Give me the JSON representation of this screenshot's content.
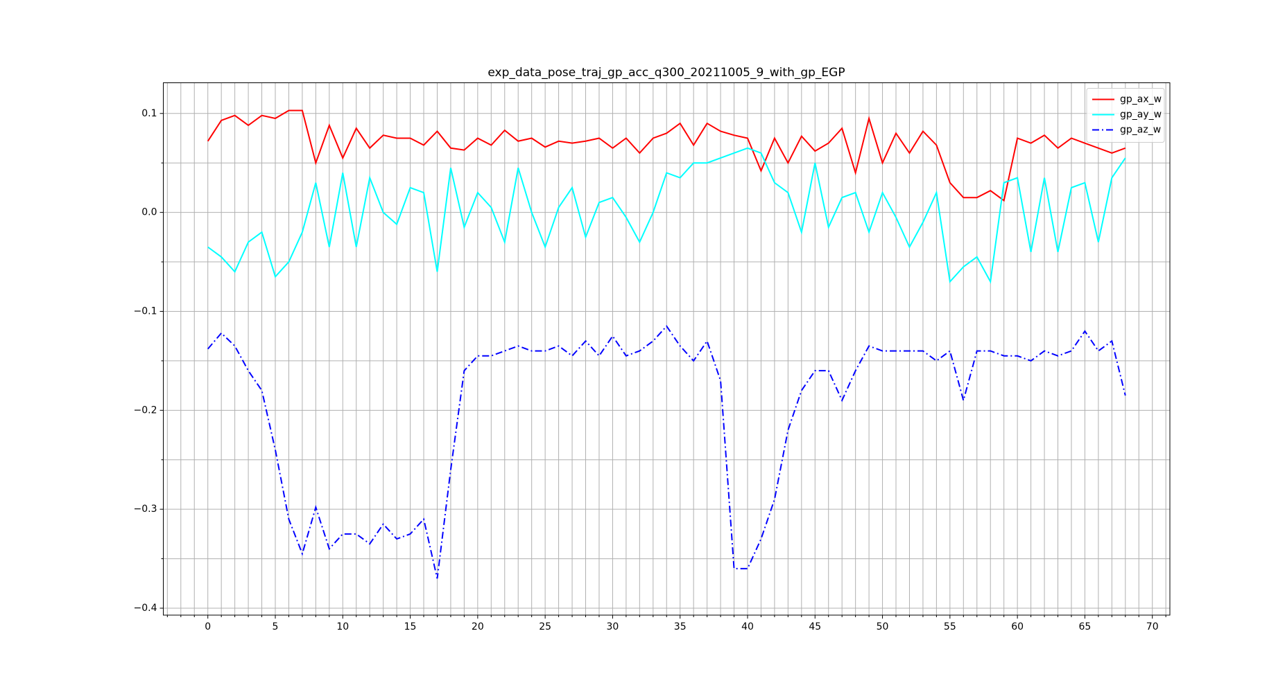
{
  "chart_data": {
    "type": "line",
    "title": "exp_data_pose_traj_gp_acc_q300_20211005_9_with_gp_EGP",
    "x": [
      0,
      1,
      2,
      3,
      4,
      5,
      6,
      7,
      8,
      9,
      10,
      11,
      12,
      13,
      14,
      15,
      16,
      17,
      18,
      19,
      20,
      21,
      22,
      23,
      24,
      25,
      26,
      27,
      28,
      29,
      30,
      31,
      32,
      33,
      34,
      35,
      36,
      37,
      38,
      39,
      40,
      41,
      42,
      43,
      44,
      45,
      46,
      47,
      48,
      49,
      50,
      51,
      52,
      53,
      54,
      55,
      56,
      57,
      58,
      59,
      60,
      61,
      62,
      63,
      64,
      65,
      66,
      67,
      68
    ],
    "series": [
      {
        "name": "gp_ax_w",
        "color": "#ff0000",
        "linestyle": "solid",
        "values": [
          0.072,
          0.093,
          0.098,
          0.088,
          0.098,
          0.095,
          0.103,
          0.103,
          0.05,
          0.088,
          0.055,
          0.085,
          0.065,
          0.078,
          0.075,
          0.075,
          0.068,
          0.082,
          0.065,
          0.063,
          0.075,
          0.068,
          0.083,
          0.072,
          0.075,
          0.066,
          0.072,
          0.07,
          0.072,
          0.075,
          0.065,
          0.075,
          0.06,
          0.075,
          0.08,
          0.09,
          0.068,
          0.09,
          0.082,
          0.078,
          0.075,
          0.042,
          0.075,
          0.05,
          0.077,
          0.062,
          0.07,
          0.085,
          0.04,
          0.095,
          0.05,
          0.08,
          0.06,
          0.082,
          0.068,
          0.03,
          0.015,
          0.015,
          0.022,
          0.012,
          0.075,
          0.07,
          0.078,
          0.065,
          0.075,
          0.07,
          0.065,
          0.06,
          0.065
        ]
      },
      {
        "name": "gp_ay_w",
        "color": "#00ffff",
        "linestyle": "solid",
        "values": [
          -0.035,
          -0.045,
          -0.06,
          -0.03,
          -0.02,
          -0.065,
          -0.05,
          -0.02,
          0.03,
          -0.035,
          0.04,
          -0.035,
          0.035,
          0,
          -0.012,
          0.025,
          0.02,
          -0.06,
          0.045,
          -0.015,
          0.02,
          0.005,
          -0.03,
          0.045,
          0,
          -0.035,
          0.005,
          0.025,
          -0.025,
          0.01,
          0.015,
          -0.005,
          -0.03,
          0,
          0.04,
          0.035,
          0.05,
          0.05,
          0.055,
          0.06,
          0.065,
          0.06,
          0.03,
          0.02,
          -0.02,
          0.05,
          -0.015,
          0.015,
          0.02,
          -0.02,
          0.02,
          -0.005,
          -0.035,
          -0.01,
          0.02,
          -0.07,
          -0.055,
          -0.045,
          -0.07,
          0.03,
          0.035,
          -0.04,
          0.035,
          -0.04,
          0.025,
          0.03,
          -0.03,
          0.035,
          0.055
        ]
      },
      {
        "name": "gp_az_w",
        "color": "#0000ff",
        "linestyle": "dashdot",
        "values": [
          -0.138,
          -0.122,
          -0.135,
          -0.16,
          -0.18,
          -0.24,
          -0.31,
          -0.345,
          -0.298,
          -0.34,
          -0.325,
          -0.325,
          -0.335,
          -0.315,
          -0.33,
          -0.325,
          -0.31,
          -0.37,
          -0.26,
          -0.16,
          -0.145,
          -0.145,
          -0.14,
          -0.135,
          -0.14,
          -0.14,
          -0.135,
          -0.145,
          -0.13,
          -0.145,
          -0.125,
          -0.145,
          -0.14,
          -0.13,
          -0.115,
          -0.135,
          -0.15,
          -0.13,
          -0.17,
          -0.36,
          -0.36,
          -0.33,
          -0.29,
          -0.22,
          -0.18,
          -0.16,
          -0.16,
          -0.19,
          -0.16,
          -0.135,
          -0.14,
          -0.14,
          -0.14,
          -0.14,
          -0.15,
          -0.14,
          -0.19,
          -0.14,
          -0.14,
          -0.145,
          -0.145,
          -0.15,
          -0.14,
          -0.145,
          -0.14,
          -0.12,
          -0.14,
          -0.13,
          -0.185
        ]
      }
    ],
    "xlim": [
      -3.3,
      71.3
    ],
    "ylim": [
      -0.407,
      0.131
    ],
    "xticks": [
      0,
      5,
      10,
      15,
      20,
      25,
      30,
      35,
      40,
      45,
      50,
      55,
      60,
      65,
      70
    ],
    "yticks": [
      {
        "value": -0.4,
        "label": "−0.4"
      },
      {
        "value": -0.3,
        "label": "−0.3"
      },
      {
        "value": -0.2,
        "label": "−0.2"
      },
      {
        "value": -0.1,
        "label": "−0.1"
      },
      {
        "value": 0,
        "label": "0.0"
      },
      0.1
    ],
    "xminorticks": [
      -3,
      -2,
      -1,
      1,
      2,
      3,
      4,
      6,
      7,
      8,
      9,
      11,
      12,
      13,
      14,
      16,
      17,
      18,
      19,
      21,
      22,
      23,
      24,
      26,
      27,
      28,
      29,
      31,
      32,
      33,
      34,
      36,
      37,
      38,
      39,
      41,
      42,
      43,
      44,
      46,
      47,
      48,
      49,
      51,
      52,
      53,
      54,
      56,
      57,
      58,
      59,
      61,
      62,
      63,
      64,
      66,
      67,
      68,
      69,
      71
    ],
    "yminorticks": [
      -0.35,
      -0.25,
      -0.15,
      -0.05,
      0.05
    ],
    "grid": true,
    "legend": "upper right"
  }
}
